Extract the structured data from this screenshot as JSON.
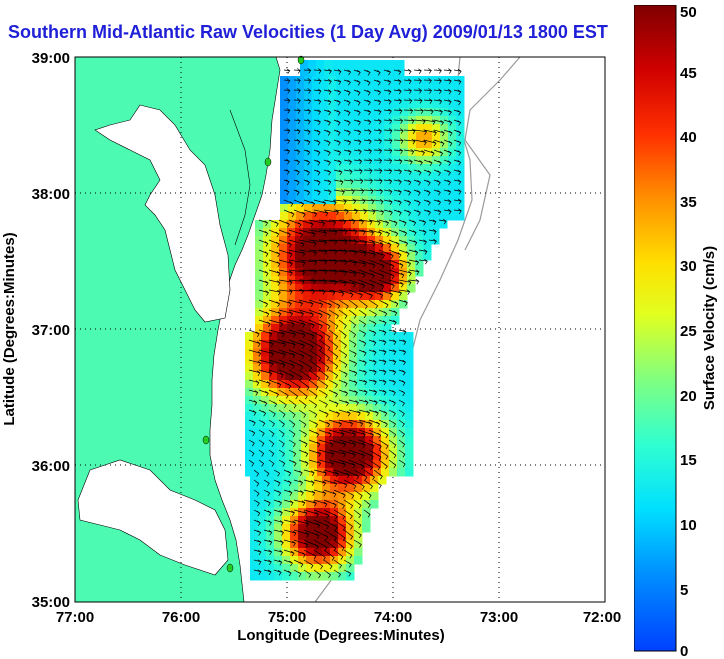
{
  "title": "Southern Mid-Atlantic Raw Velocities (1 Day Avg) 2009/01/13 1800 EST",
  "xaxis": {
    "label": "Longitude (Degrees:Minutes)",
    "ticks": [
      "77:00",
      "76:00",
      "75:00",
      "74:00",
      "73:00",
      "72:00"
    ]
  },
  "yaxis": {
    "label": "Latitude (Degrees:Minutes)",
    "ticks": [
      "39:00",
      "38:00",
      "37:00",
      "36:00",
      "35:00"
    ]
  },
  "colorbar": {
    "label": "Surface Velocity (cm/s)",
    "ticks": [
      "0",
      "5",
      "10",
      "15",
      "20",
      "25",
      "30",
      "35",
      "40",
      "45",
      "50"
    ],
    "min": 0,
    "max": 50
  },
  "colors": {
    "land": "#4dfab2",
    "title": "#1f1fd8",
    "coast_outline": "#000000",
    "bathymetry": "#9a9a9a",
    "station": "#22cc22"
  },
  "map": {
    "lon_range": [
      -77,
      -72
    ],
    "lat_range": [
      35,
      39
    ]
  }
}
